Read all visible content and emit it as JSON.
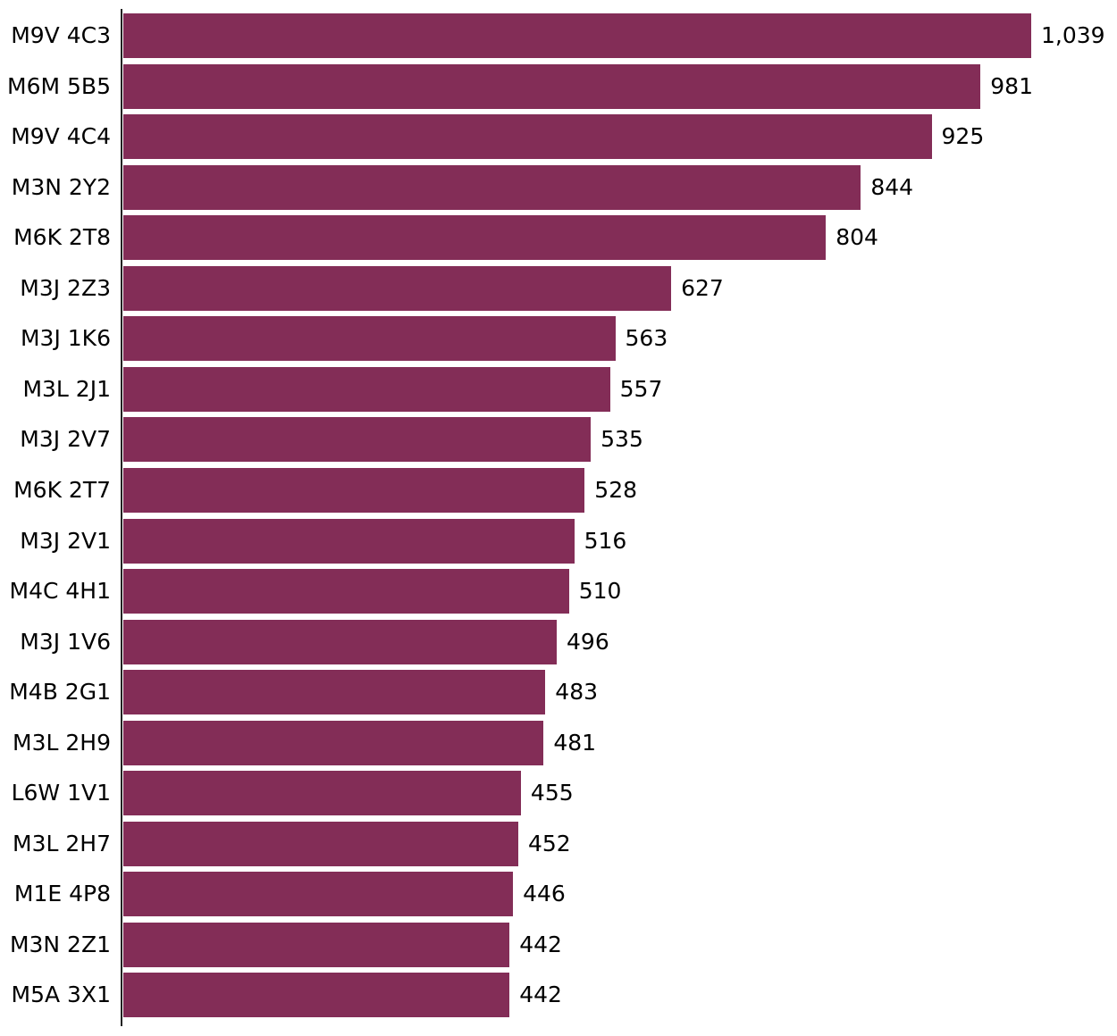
{
  "chart_data": {
    "type": "bar",
    "orientation": "horizontal",
    "title": "",
    "xlabel": "",
    "ylabel": "",
    "grid": false,
    "legend": null,
    "bar_color": "#832d57",
    "xlim": [
      0,
      1039
    ],
    "categories": [
      "M9V 4C3",
      "M6M 5B5",
      "M9V 4C4",
      "M3N 2Y2",
      "M6K 2T8",
      "M3J 2Z3",
      "M3J 1K6",
      "M3L 2J1",
      "M3J 2V7",
      "M6K 2T7",
      "M3J 2V1",
      "M4C 4H1",
      "M3J 1V6",
      "M4B 2G1",
      "M3L 2H9",
      "L6W 1V1",
      "M3L 2H7",
      "M1E 4P8",
      "M3N 2Z1",
      "M5A 3X1"
    ],
    "values": [
      1039,
      981,
      925,
      844,
      804,
      627,
      563,
      557,
      535,
      528,
      516,
      510,
      496,
      483,
      481,
      455,
      452,
      446,
      442,
      442
    ],
    "value_labels": [
      "1,039",
      "981",
      "925",
      "844",
      "804",
      "627",
      "563",
      "557",
      "535",
      "528",
      "516",
      "510",
      "496",
      "483",
      "481",
      "455",
      "452",
      "446",
      "442",
      "442"
    ]
  }
}
